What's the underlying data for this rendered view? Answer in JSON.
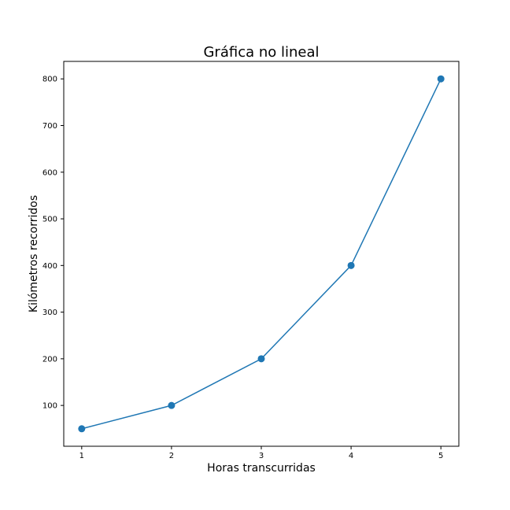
{
  "chart_data": {
    "type": "line",
    "title": "Gráfica no lineal",
    "xlabel": "Horas transcurridas",
    "ylabel": "Kilómetros recorridos",
    "x": [
      1,
      2,
      3,
      4,
      5
    ],
    "series": [
      {
        "values": [
          50,
          100,
          200,
          400,
          800
        ],
        "color": "#1f77b4",
        "marker": "circle"
      }
    ],
    "xticks": [
      "1",
      "2",
      "3",
      "4",
      "5"
    ],
    "yticks": [
      "100",
      "200",
      "300",
      "400",
      "500",
      "600",
      "700",
      "800"
    ],
    "xlim": [
      0.8,
      5.2
    ],
    "ylim": [
      12.5,
      837.5
    ],
    "grid": false
  }
}
